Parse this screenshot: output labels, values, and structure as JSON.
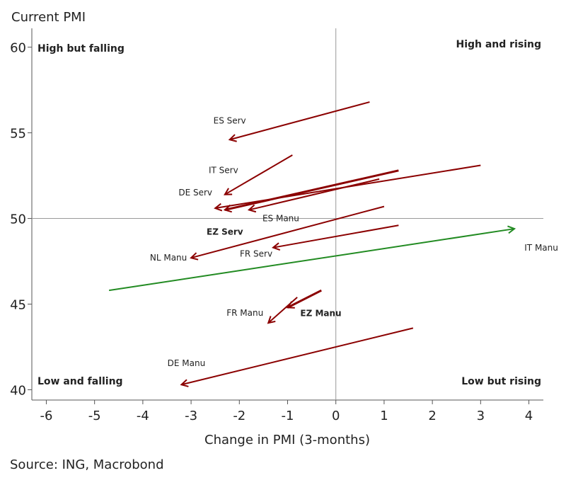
{
  "chart_data": {
    "type": "scatter",
    "title": "Current PMI",
    "xlabel": "Change in PMI (3-months)",
    "ylabel": "Current PMI",
    "xlim": [
      -6.3,
      4.3
    ],
    "ylim": [
      39.4,
      61.1
    ],
    "xticks": [
      -6,
      -5,
      -4,
      -3,
      -2,
      -1,
      0,
      1,
      2,
      3,
      4
    ],
    "yticks": [
      40,
      45,
      50,
      55,
      60
    ],
    "reference_lines": {
      "x": 0,
      "y": 50
    },
    "quadrants": [
      {
        "key": "tl",
        "label": "High but falling"
      },
      {
        "key": "tr",
        "label": "High and rising"
      },
      {
        "key": "bl",
        "label": "Low and falling"
      },
      {
        "key": "br",
        "label": "Low but rising"
      }
    ],
    "colors": {
      "falling": "#8b0000",
      "rising": "#228b22",
      "axis": "#555555",
      "refline": "#999999"
    },
    "series": [
      {
        "name": "ES Serv",
        "from": [
          0.7,
          56.8
        ],
        "to": [
          -2.2,
          54.6
        ],
        "trend": "falling",
        "bold": false
      },
      {
        "name": "IT Serv",
        "from": [
          -0.9,
          53.7
        ],
        "to": [
          -2.3,
          51.4
        ],
        "trend": "falling",
        "bold": false
      },
      {
        "name": "DE Serv",
        "from": [
          3.0,
          53.1
        ],
        "to": [
          -2.5,
          50.6
        ],
        "trend": "falling",
        "bold": false
      },
      {
        "name": "EZ Serv",
        "from": [
          1.3,
          52.8
        ],
        "to": [
          -2.3,
          50.5
        ],
        "trend": "falling",
        "bold": true
      },
      {
        "name": "ES Manu",
        "from": [
          0.9,
          52.3
        ],
        "to": [
          -1.8,
          50.5
        ],
        "trend": "falling",
        "bold": false
      },
      {
        "name": "NL Manu",
        "from": [
          1.0,
          50.7
        ],
        "to": [
          -3.0,
          47.7
        ],
        "trend": "falling",
        "bold": false
      },
      {
        "name": "FR Serv",
        "from": [
          1.3,
          49.6
        ],
        "to": [
          -1.3,
          48.3
        ],
        "trend": "falling",
        "bold": false
      },
      {
        "name": "IT Manu",
        "from": [
          -4.7,
          45.8
        ],
        "to": [
          3.7,
          49.4
        ],
        "trend": "rising",
        "bold": false
      },
      {
        "name": "FR Manu",
        "from": [
          -0.8,
          45.4
        ],
        "to": [
          -1.4,
          43.9
        ],
        "trend": "falling",
        "bold": false
      },
      {
        "name": "EZ Manu",
        "from": [
          -0.3,
          45.8
        ],
        "to": [
          -1.0,
          44.8
        ],
        "trend": "falling",
        "bold": true
      },
      {
        "name": "DE Manu",
        "from": [
          1.6,
          43.6
        ],
        "to": [
          -3.2,
          40.3
        ],
        "trend": "falling",
        "bold": false
      }
    ]
  },
  "source": "Source: ING, Macrobond"
}
